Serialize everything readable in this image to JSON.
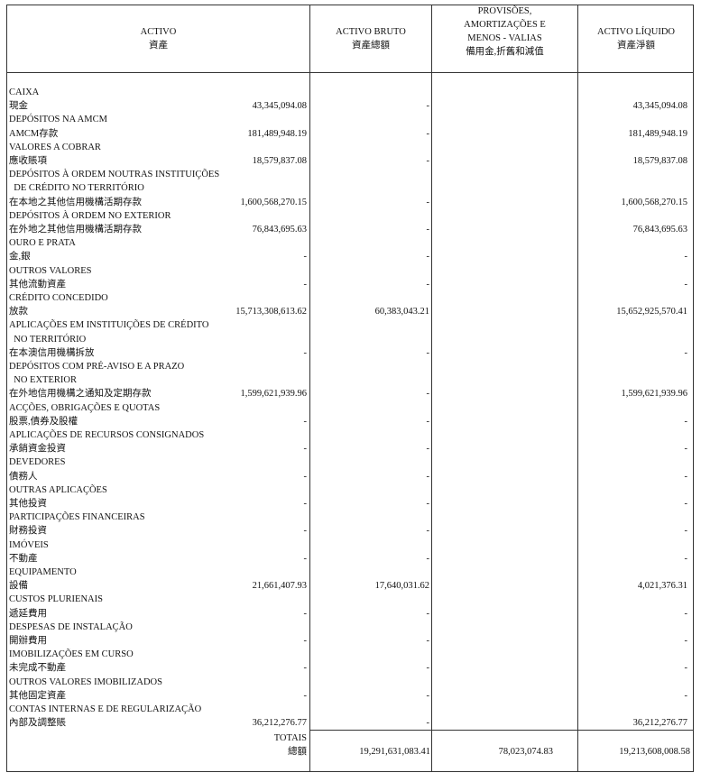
{
  "header": {
    "activo": [
      "ACTIVO",
      "資產"
    ],
    "bruto": [
      "ACTIVO BRUTO",
      "資產總額"
    ],
    "provisoes": [
      "PROVISÕES,",
      "AMORTIZAÇÕES E",
      "MENOS - VALIAS",
      "備用金,折舊和減值"
    ],
    "liquido": [
      "ACTIVO LÍQUIDO",
      "資產淨額"
    ]
  },
  "items": [
    {
      "pt": [
        "CAIXA"
      ],
      "zh": "現金",
      "bruto": "43,345,094.08",
      "prov": "-",
      "liquido": "43,345,094.08"
    },
    {
      "pt": [
        "DEPÓSITOS NA AMCM"
      ],
      "zh": "AMCM存款",
      "bruto": "181,489,948.19",
      "prov": "-",
      "liquido": "181,489,948.19"
    },
    {
      "pt": [
        "VALORES A COBRAR"
      ],
      "zh": "應收賬項",
      "bruto": "18,579,837.08",
      "prov": "-",
      "liquido": "18,579,837.08"
    },
    {
      "pt": [
        "DEPÓSITOS À ORDEM NOUTRAS INSTITUIÇÕES",
        "  DE CRÉDITO NO TERRITÓRIO"
      ],
      "zh": "在本地之其他信用機構活期存款",
      "bruto": "1,600,568,270.15",
      "prov": "-",
      "liquido": "1,600,568,270.15"
    },
    {
      "pt": [
        "DEPÓSITOS À ORDEM NO EXTERIOR"
      ],
      "zh": "在外地之其他信用機構活期存款",
      "bruto": "76,843,695.63",
      "prov": "-",
      "liquido": "76,843,695.63"
    },
    {
      "pt": [
        "OURO E PRATA"
      ],
      "zh": "金,銀",
      "bruto": "-",
      "prov": "-",
      "liquido": "-"
    },
    {
      "pt": [
        "OUTROS VALORES"
      ],
      "zh": "其他流動資產",
      "bruto": "-",
      "prov": "-",
      "liquido": "-"
    },
    {
      "pt": [
        "CRÉDITO CONCEDIDO"
      ],
      "zh": "放款",
      "bruto": "15,713,308,613.62",
      "prov": "60,383,043.21",
      "liquido": "15,652,925,570.41"
    },
    {
      "pt": [
        "APLICAÇÕES EM INSTITUIÇÕES DE CRÉDITO",
        "  NO TERRITÓRIO"
      ],
      "zh": "在本澳信用機構拆放",
      "bruto": "-",
      "prov": "-",
      "liquido": "-"
    },
    {
      "pt": [
        "DEPÓSITOS COM PRÉ-AVISO E A PRAZO",
        "  NO EXTERIOR"
      ],
      "zh": "在外地信用機構之通知及定期存款",
      "bruto": "1,599,621,939.96",
      "prov": "-",
      "liquido": "1,599,621,939.96"
    },
    {
      "pt": [
        "ACÇÕES, OBRIGAÇÕES E QUOTAS"
      ],
      "zh": "股票,債券及股權",
      "bruto": "-",
      "prov": "-",
      "liquido": "-"
    },
    {
      "pt": [
        "APLICAÇÕES DE RECURSOS CONSIGNADOS"
      ],
      "zh": "承銷資金投資",
      "bruto": "-",
      "prov": "-",
      "liquido": "-"
    },
    {
      "pt": [
        "DEVEDORES"
      ],
      "zh": "債務人",
      "bruto": "-",
      "prov": "-",
      "liquido": "-"
    },
    {
      "pt": [
        "OUTRAS APLICAÇÕES"
      ],
      "zh": "其他投資",
      "bruto": "-",
      "prov": "-",
      "liquido": "-"
    },
    {
      "pt": [
        "PARTICIPAÇÕES FINANCEIRAS"
      ],
      "zh": "財務投資",
      "bruto": "-",
      "prov": "-",
      "liquido": "-"
    },
    {
      "pt": [
        "IMÓVEIS"
      ],
      "zh": "不動產",
      "bruto": "-",
      "prov": "-",
      "liquido": "-"
    },
    {
      "pt": [
        "EQUIPAMENTO"
      ],
      "zh": "設備",
      "bruto": "21,661,407.93",
      "prov": "17,640,031.62",
      "liquido": "4,021,376.31"
    },
    {
      "pt": [
        "CUSTOS PLURIENAIS"
      ],
      "zh": "遞延費用",
      "bruto": "-",
      "prov": "-",
      "liquido": "-"
    },
    {
      "pt": [
        "DESPESAS DE INSTALAÇÃO"
      ],
      "zh": "開辦費用",
      "bruto": "-",
      "prov": "-",
      "liquido": "-"
    },
    {
      "pt": [
        "IMOBILIZAÇÕES EM CURSO"
      ],
      "zh": "未完成不動產",
      "bruto": "-",
      "prov": "-",
      "liquido": "-"
    },
    {
      "pt": [
        "OUTROS VALORES IMOBILIZADOS"
      ],
      "zh": "其他固定資產",
      "bruto": "-",
      "prov": "-",
      "liquido": "-"
    },
    {
      "pt": [
        "CONTAS INTERNAS E DE REGULARIZAÇÃO"
      ],
      "zh": "內部及調整賬",
      "bruto": "36,212,276.77",
      "prov": "-",
      "liquido": "36,212,276.77"
    }
  ],
  "totals": {
    "label_pt": "TOTAIS",
    "label_zh": "總額",
    "bruto": "19,291,631,083.41",
    "prov": "78,023,074.83",
    "liquido": "19,213,608,008.58"
  }
}
